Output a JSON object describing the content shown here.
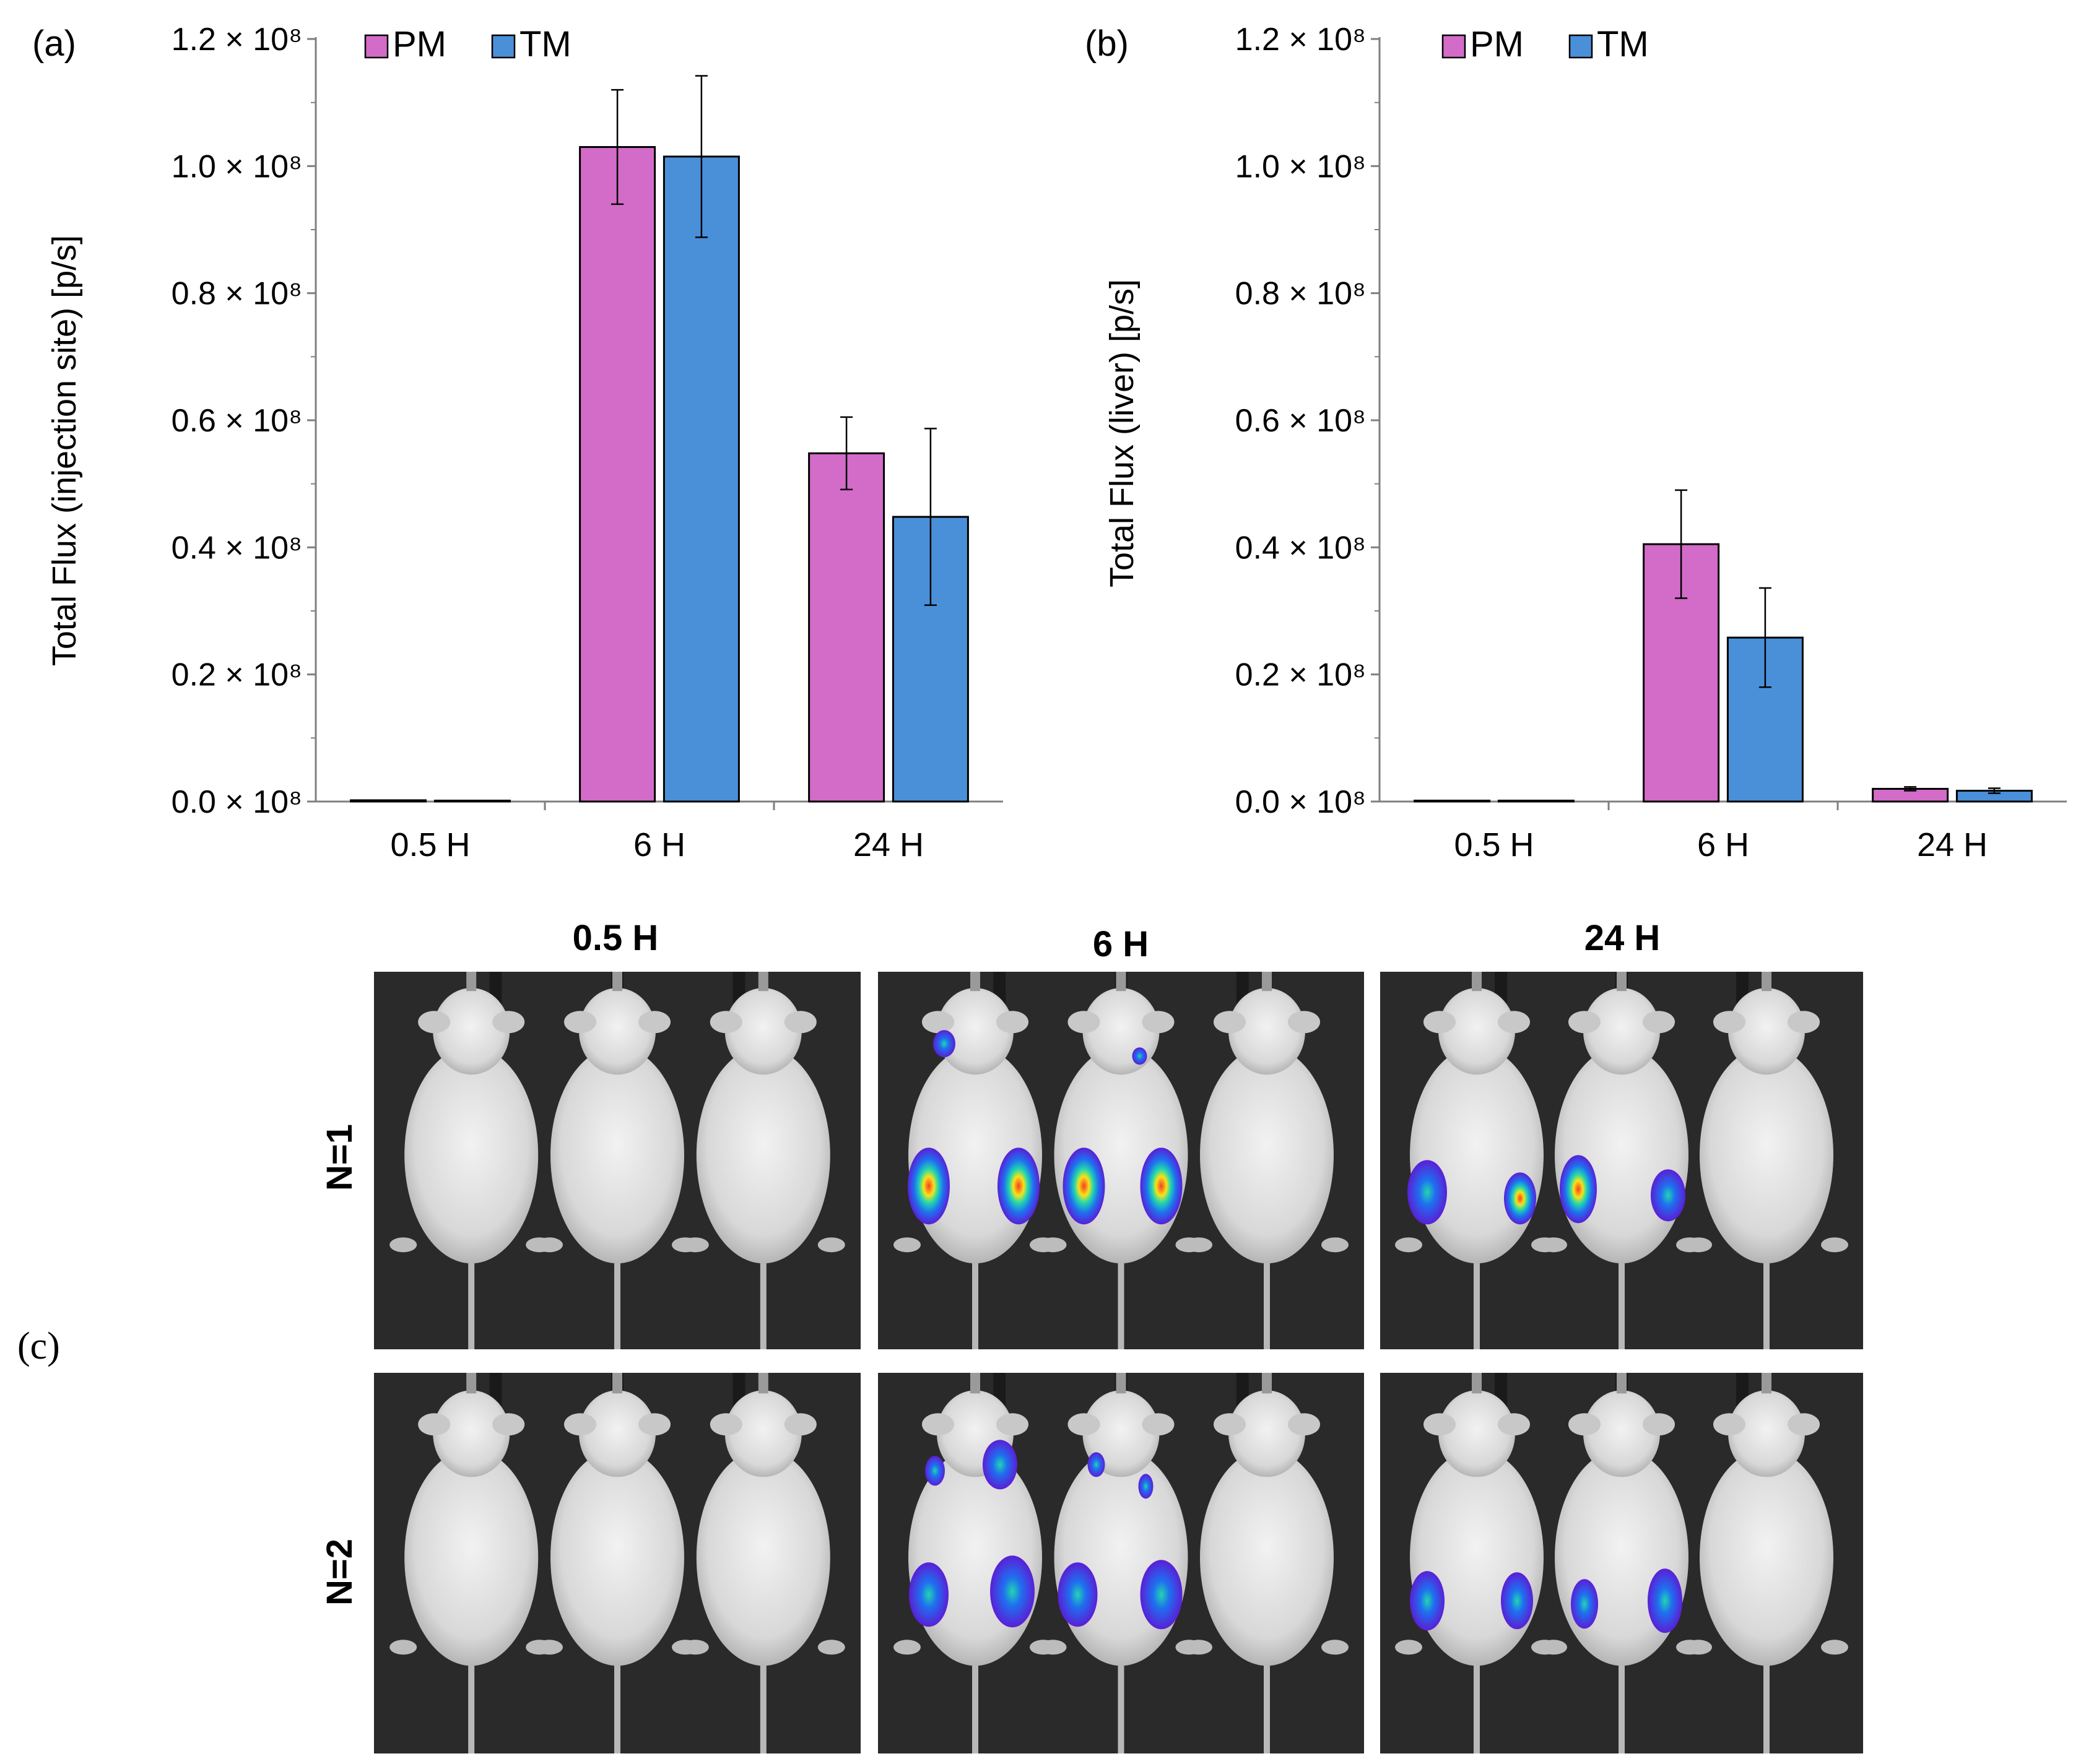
{
  "panel_labels": {
    "a": "(a)",
    "b": "(b)",
    "c": "(c)"
  },
  "legend": [
    {
      "name": "PM",
      "color": "#d36bc8"
    },
    {
      "name": "TM",
      "color": "#4a90d9"
    }
  ],
  "chart_data": [
    {
      "type": "bar",
      "panel": "(a)",
      "ylabel": "Total Flux (injection site) [p/s]",
      "categories": [
        "0.5 H",
        "6 H",
        "24 H"
      ],
      "ylim": [
        0,
        1.2
      ],
      "y_multiplier": "× 10⁸",
      "yticks": [
        "0.0 × 10⁸",
        "0.2 × 10⁸",
        "0.4 × 10⁸",
        "0.6 × 10⁸",
        "0.8 × 10⁸",
        "1.0 × 10⁸",
        "1.2 × 10⁸"
      ],
      "series": [
        {
          "name": "PM",
          "color": "#d36bc8",
          "values": [
            0.002,
            1.03,
            0.548
          ],
          "errors": [
            0.001,
            0.09,
            0.057
          ]
        },
        {
          "name": "TM",
          "color": "#4a90d9",
          "values": [
            0.001,
            1.015,
            0.448
          ],
          "errors": [
            0.001,
            0.127,
            0.139
          ]
        }
      ],
      "grid": false,
      "legend_position": "top-left"
    },
    {
      "type": "bar",
      "panel": "(b)",
      "ylabel": "Total Flux (liver) [p/s]",
      "categories": [
        "0.5 H",
        "6 H",
        "24 H"
      ],
      "ylim": [
        0,
        1.2
      ],
      "y_multiplier": "× 10⁸",
      "yticks": [
        "0.0 × 10⁸",
        "0.2 × 10⁸",
        "0.4 × 10⁸",
        "0.6 × 10⁸",
        "0.8 × 10⁸",
        "1.0 × 10⁸",
        "1.2 × 10⁸"
      ],
      "series": [
        {
          "name": "PM",
          "color": "#d36bc8",
          "values": [
            0.0005,
            0.405,
            0.02
          ],
          "errors": [
            0.0003,
            0.085,
            0.003
          ]
        },
        {
          "name": "TM",
          "color": "#4a90d9",
          "values": [
            0.0005,
            0.258,
            0.017
          ],
          "errors": [
            0.0003,
            0.078,
            0.004
          ]
        }
      ],
      "grid": false,
      "legend_position": "top-left"
    }
  ],
  "imaging": {
    "columns": [
      "0.5 H",
      "6 H",
      "24 H"
    ],
    "rows": [
      "N=1",
      "N=2"
    ]
  }
}
